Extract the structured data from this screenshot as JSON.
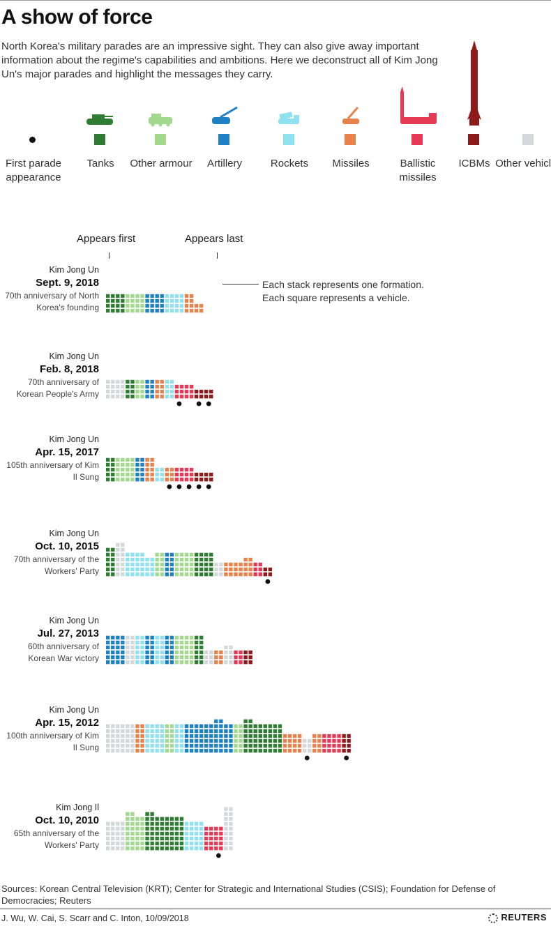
{
  "title": "A show of force",
  "intro": "North Korea's military parades are an impressive sight. They can also give away important information about the regime's capabilities and ambitions. Here we deconstruct all of Kim Jong Un's major parades and highlight the messages they carry.",
  "colors": {
    "first_parade": "#111111",
    "tanks": "#2e7d32",
    "other_armour": "#a3d98f",
    "artillery": "#1f80c4",
    "rockets": "#8fe1f0",
    "missiles": "#e8824a",
    "ballistic": "#e53956",
    "icbm": "#8e1a1a",
    "other": "#d3d8da"
  },
  "legend": [
    {
      "key": "first_parade",
      "label": "First parade appearance",
      "icon": "dot-icon"
    },
    {
      "key": "tanks",
      "label": "Tanks",
      "icon": "tank-icon"
    },
    {
      "key": "other_armour",
      "label": "Other armour",
      "icon": "armoured-vehicle-icon"
    },
    {
      "key": "artillery",
      "label": "Artillery",
      "icon": "artillery-icon"
    },
    {
      "key": "rockets",
      "label": "Rockets",
      "icon": "rocket-launcher-icon"
    },
    {
      "key": "missiles",
      "label": "Missiles",
      "icon": "missile-launcher-icon"
    },
    {
      "key": "ballistic",
      "label": "Ballistic missiles",
      "icon": "ballistic-missile-icon"
    },
    {
      "key": "icbm",
      "label": "ICBMs",
      "icon": "icbm-icon"
    },
    {
      "key": "other",
      "label": "Other vehicles",
      "icon": "none"
    }
  ],
  "chart_header": {
    "appears_first": "Appears first",
    "appears_last": "Appears last",
    "annotation_line1": "Each stack represents one formation.",
    "annotation_line2": "Each square represents a vehicle."
  },
  "chart_data": {
    "type": "unit-stack",
    "title": "A show of force",
    "unit": "One square = one vehicle; one stack = one formation",
    "stack_columns": 2,
    "parades": [
      {
        "leader": "Kim Jong Un",
        "date": "Sept. 9, 2018",
        "occasion": "70th anniversary of North Korea's founding",
        "formations": [
          {
            "type": "tanks",
            "count": 8
          },
          {
            "type": "tanks",
            "count": 8
          },
          {
            "type": "other_armour",
            "count": 8
          },
          {
            "type": "other_armour",
            "count": 8
          },
          {
            "type": "artillery",
            "count": 8
          },
          {
            "type": "artillery",
            "count": 8
          },
          {
            "type": "rockets",
            "count": 8
          },
          {
            "type": "rockets",
            "count": 8
          },
          {
            "type": "missiles",
            "count": 8
          },
          {
            "type": "missiles",
            "count": 4
          }
        ],
        "first_appearances": []
      },
      {
        "leader": "Kim Jong Un",
        "date": "Feb. 8, 2018",
        "occasion": "70th anniversary of Korean People's Army",
        "formations": [
          {
            "type": "other",
            "count": 8
          },
          {
            "type": "other",
            "count": 8
          },
          {
            "type": "tanks",
            "count": 8
          },
          {
            "type": "other_armour",
            "count": 8
          },
          {
            "type": "artillery",
            "count": 8
          },
          {
            "type": "missiles",
            "count": 8
          },
          {
            "type": "rockets",
            "count": 8
          },
          {
            "type": "ballistic",
            "count": 6
          },
          {
            "type": "ballistic",
            "count": 6
          },
          {
            "type": "icbm",
            "count": 4
          },
          {
            "type": "icbm",
            "count": 4
          }
        ],
        "first_appearances": [
          7,
          9,
          10
        ]
      },
      {
        "leader": "Kim Jong Un",
        "date": "Apr. 15, 2017",
        "occasion": "105th anniversary of Kim Il Sung",
        "formations": [
          {
            "type": "tanks",
            "count": 10
          },
          {
            "type": "other_armour",
            "count": 10
          },
          {
            "type": "other_armour",
            "count": 10
          },
          {
            "type": "artillery",
            "count": 10
          },
          {
            "type": "missiles",
            "count": 10
          },
          {
            "type": "rockets",
            "count": 6
          },
          {
            "type": "missiles",
            "count": 6
          },
          {
            "type": "ballistic",
            "count": 6
          },
          {
            "type": "ballistic",
            "count": 6
          },
          {
            "type": "icbm",
            "count": 4
          },
          {
            "type": "icbm",
            "count": 4
          }
        ],
        "first_appearances": [
          6,
          7,
          8,
          9,
          10
        ]
      },
      {
        "leader": "Kim Jong Un",
        "date": "Oct. 10, 2015",
        "occasion": "70th anniversary of the Workers' Party",
        "formations": [
          {
            "type": "tanks",
            "count": 12
          },
          {
            "type": "other",
            "count": 14
          },
          {
            "type": "rockets",
            "count": 10
          },
          {
            "type": "rockets",
            "count": 10
          },
          {
            "type": "rockets",
            "count": 8
          },
          {
            "type": "other_armour",
            "count": 10
          },
          {
            "type": "artillery",
            "count": 10
          },
          {
            "type": "other_armour",
            "count": 10
          },
          {
            "type": "other_armour",
            "count": 10
          },
          {
            "type": "tanks",
            "count": 10
          },
          {
            "type": "tanks",
            "count": 10
          },
          {
            "type": "other",
            "count": 6
          },
          {
            "type": "missiles",
            "count": 6
          },
          {
            "type": "missiles",
            "count": 6
          },
          {
            "type": "missiles",
            "count": 8
          },
          {
            "type": "ballistic",
            "count": 6
          },
          {
            "type": "icbm",
            "count": 4
          }
        ],
        "first_appearances": [
          16
        ]
      },
      {
        "leader": "Kim Jong Un",
        "date": "Jul. 27, 2013",
        "occasion": "60th anniversary of Korean War victory",
        "formations": [
          {
            "type": "artillery",
            "count": 12
          },
          {
            "type": "artillery",
            "count": 12
          },
          {
            "type": "other",
            "count": 12
          },
          {
            "type": "rockets",
            "count": 12
          },
          {
            "type": "artillery",
            "count": 12
          },
          {
            "type": "rockets",
            "count": 12
          },
          {
            "type": "artillery",
            "count": 12
          },
          {
            "type": "other_armour",
            "count": 12
          },
          {
            "type": "other_armour",
            "count": 12
          },
          {
            "type": "tanks",
            "count": 12
          },
          {
            "type": "other",
            "count": 6
          },
          {
            "type": "missiles",
            "count": 6
          },
          {
            "type": "other",
            "count": 8
          },
          {
            "type": "ballistic",
            "count": 6
          },
          {
            "type": "icbm",
            "count": 6
          }
        ],
        "first_appearances": []
      },
      {
        "leader": "Kim Jong Un",
        "date": "Apr. 15, 2012",
        "occasion": "100th anniversary of Kim Il Sung",
        "formations": [
          {
            "type": "other",
            "count": 12
          },
          {
            "type": "other",
            "count": 12
          },
          {
            "type": "other",
            "count": 12
          },
          {
            "type": "missiles",
            "count": 12
          },
          {
            "type": "rockets",
            "count": 12
          },
          {
            "type": "rockets",
            "count": 12
          },
          {
            "type": "other_armour",
            "count": 12
          },
          {
            "type": "rockets",
            "count": 12
          },
          {
            "type": "artillery",
            "count": 12
          },
          {
            "type": "artillery",
            "count": 12
          },
          {
            "type": "artillery",
            "count": 12
          },
          {
            "type": "artillery",
            "count": 14
          },
          {
            "type": "artillery",
            "count": 12
          },
          {
            "type": "other_armour",
            "count": 12
          },
          {
            "type": "tanks",
            "count": 14
          },
          {
            "type": "tanks",
            "count": 12
          },
          {
            "type": "tanks",
            "count": 12
          },
          {
            "type": "tanks",
            "count": 12
          },
          {
            "type": "missiles",
            "count": 8
          },
          {
            "type": "missiles",
            "count": 8
          },
          {
            "type": "other",
            "count": 6
          },
          {
            "type": "missiles",
            "count": 8
          },
          {
            "type": "ballistic",
            "count": 8
          },
          {
            "type": "ballistic",
            "count": 8
          },
          {
            "type": "icbm",
            "count": 8
          }
        ],
        "first_appearances": [
          20,
          24
        ]
      },
      {
        "leader": "Kim Jong Il",
        "date": "Oct. 10, 2010",
        "occasion": "65th anniversary of the Workers' Party",
        "formations": [
          {
            "type": "other",
            "count": 12
          },
          {
            "type": "other",
            "count": 12
          },
          {
            "type": "other_armour",
            "count": 16
          },
          {
            "type": "other_armour",
            "count": 14
          },
          {
            "type": "tanks",
            "count": 16
          },
          {
            "type": "tanks",
            "count": 14
          },
          {
            "type": "tanks",
            "count": 14
          },
          {
            "type": "tanks",
            "count": 14
          },
          {
            "type": "rockets",
            "count": 12
          },
          {
            "type": "rockets",
            "count": 12
          },
          {
            "type": "ballistic",
            "count": 10
          },
          {
            "type": "ballistic",
            "count": 10
          },
          {
            "type": "other",
            "count": 18
          }
        ],
        "first_appearances": [
          11
        ]
      }
    ]
  },
  "sources": "Sources: Korean Central Television (KRT); Center for Strategic and International Studies (CSIS); Foundation for Defense of Democracies; Reuters",
  "credit": "J. Wu, W. Cai, S. Scarr and C. Inton, 10/09/2018",
  "publisher": "REUTERS"
}
